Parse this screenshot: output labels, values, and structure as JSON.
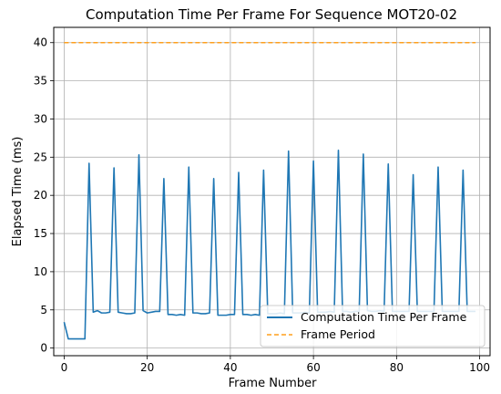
{
  "chart_data": {
    "type": "line",
    "title": "Computation Time Per Frame For Sequence MOT20-02",
    "xlabel": "Frame Number",
    "ylabel": "Elapsed Time (ms)",
    "xlim": [
      -2.5,
      102.5
    ],
    "ylim": [
      -1,
      42
    ],
    "xticks": [
      0,
      20,
      40,
      60,
      80,
      100
    ],
    "yticks": [
      0,
      5,
      10,
      15,
      20,
      25,
      30,
      35,
      40
    ],
    "grid": true,
    "legend_position": "lower-right",
    "series": [
      {
        "name": "Computation Time Per Frame",
        "color": "#1f77b4",
        "style": "solid",
        "x": [
          0,
          1,
          2,
          3,
          4,
          5,
          6,
          7,
          8,
          9,
          10,
          11,
          12,
          13,
          14,
          15,
          16,
          17,
          18,
          19,
          20,
          21,
          22,
          23,
          24,
          25,
          26,
          27,
          28,
          29,
          30,
          31,
          32,
          33,
          34,
          35,
          36,
          37,
          38,
          39,
          40,
          41,
          42,
          43,
          44,
          45,
          46,
          47,
          48,
          49,
          50,
          51,
          52,
          53,
          54,
          55,
          56,
          57,
          58,
          59,
          60,
          61,
          62,
          63,
          64,
          65,
          66,
          67,
          68,
          69,
          70,
          71,
          72,
          73,
          74,
          75,
          76,
          77,
          78,
          79,
          80,
          81,
          82,
          83,
          84,
          85,
          86,
          87,
          88,
          89,
          90,
          91,
          92,
          93,
          94,
          95,
          96,
          97,
          98,
          99
        ],
        "y": [
          3.4,
          1.2,
          1.2,
          1.2,
          1.2,
          1.2,
          24.2,
          4.7,
          4.9,
          4.6,
          4.6,
          4.7,
          23.6,
          4.7,
          4.6,
          4.5,
          4.5,
          4.6,
          25.3,
          4.9,
          4.6,
          4.7,
          4.8,
          4.8,
          22.2,
          4.4,
          4.4,
          4.3,
          4.4,
          4.3,
          23.7,
          4.6,
          4.6,
          4.5,
          4.5,
          4.6,
          22.2,
          4.3,
          4.3,
          4.3,
          4.4,
          4.4,
          23.0,
          4.4,
          4.4,
          4.3,
          4.4,
          4.3,
          23.3,
          4.5,
          4.5,
          4.5,
          4.6,
          4.5,
          25.8,
          4.6,
          4.6,
          4.6,
          4.7,
          4.6,
          24.5,
          4.7,
          4.7,
          4.7,
          4.8,
          4.7,
          25.9,
          4.8,
          4.8,
          4.7,
          4.8,
          4.8,
          25.4,
          4.9,
          4.8,
          4.8,
          4.9,
          4.8,
          24.1,
          4.8,
          4.8,
          4.8,
          4.8,
          4.8,
          22.7,
          4.8,
          4.8,
          4.8,
          4.8,
          4.8,
          23.7,
          4.8,
          4.8,
          4.8,
          4.8,
          4.8,
          23.3,
          4.8,
          4.8,
          4.8
        ]
      },
      {
        "name": "Frame Period",
        "color": "#ff9f1c",
        "style": "dashed",
        "x": [
          0,
          99
        ],
        "y": [
          40,
          40
        ]
      }
    ]
  }
}
